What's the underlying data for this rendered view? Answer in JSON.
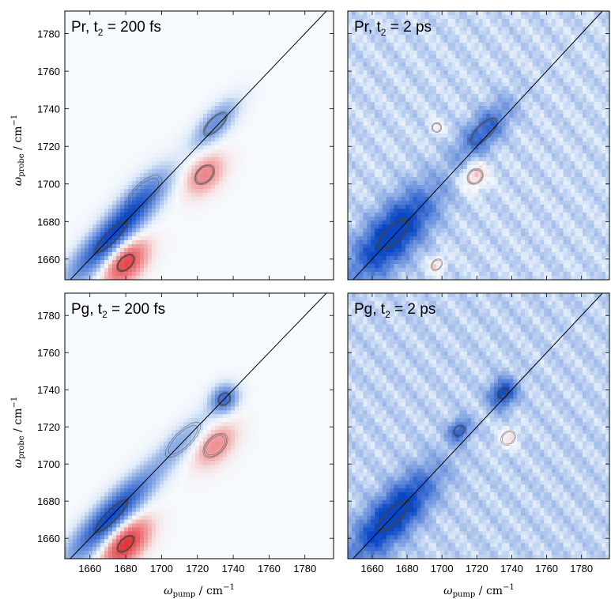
{
  "figure": {
    "xlabel": {
      "symbol": "ω",
      "sub": "pump",
      "unit": " / cm",
      "sup": "−1"
    },
    "ylabel": {
      "symbol": "ω",
      "sub": "probe",
      "unit": " / cm",
      "sup": "−1"
    }
  },
  "colors": {
    "negative_strong": "#0a47c4",
    "negative_weak": "#dbe8f8",
    "positive_strong": "#e3262b",
    "positive_weak": "#f6dede",
    "background": "#f6f9fd",
    "contour": "#444444",
    "diagonal": "#000000"
  },
  "chart_data": [
    {
      "type": "heatmap",
      "panel_label": {
        "main": "Pr, t",
        "sub": "2",
        "rest": " = 200 fs"
      },
      "xlim": [
        1646,
        1796
      ],
      "ylim": [
        1649,
        1792
      ],
      "xticks": [
        "1660",
        "1680",
        "1700",
        "1720",
        "1740",
        "1760",
        "1780"
      ],
      "yticks": [
        "1660",
        "1680",
        "1700",
        "1720",
        "1740",
        "1760",
        "1780"
      ],
      "diagonal": true,
      "features": [
        {
          "sign": "negative",
          "x": 1672,
          "y": 1672,
          "amp": 1.0,
          "along": 24,
          "across": 6
        },
        {
          "sign": "negative",
          "x": 1690,
          "y": 1695,
          "amp": 0.35,
          "along": 14,
          "across": 6
        },
        {
          "sign": "negative",
          "x": 1730,
          "y": 1732,
          "amp": 0.55,
          "along": 12,
          "across": 5
        },
        {
          "sign": "positive",
          "x": 1680,
          "y": 1658,
          "amp": 0.85,
          "along": 10,
          "across": 6
        },
        {
          "sign": "positive",
          "x": 1724,
          "y": 1705,
          "amp": 0.5,
          "along": 9,
          "across": 6
        }
      ]
    },
    {
      "type": "heatmap",
      "panel_label": {
        "main": "Pr, t",
        "sub": "2",
        "rest": " = 2 ps"
      },
      "xlim": [
        1646,
        1796
      ],
      "ylim": [
        1649,
        1792
      ],
      "xticks": [
        "1660",
        "1680",
        "1700",
        "1720",
        "1740",
        "1760",
        "1780"
      ],
      "yticks": [],
      "diagonal": true,
      "features": [
        {
          "sign": "negative",
          "x": 1672,
          "y": 1673,
          "amp": 1.0,
          "along": 22,
          "across": 9
        },
        {
          "sign": "negative",
          "x": 1724,
          "y": 1728,
          "amp": 0.6,
          "along": 14,
          "across": 6
        },
        {
          "sign": "positive",
          "x": 1719,
          "y": 1704,
          "amp": 0.45,
          "along": 6,
          "across": 5
        },
        {
          "sign": "positive",
          "x": 1697,
          "y": 1657,
          "amp": 0.35,
          "along": 4,
          "across": 3
        },
        {
          "sign": "positive",
          "x": 1697,
          "y": 1730,
          "amp": 0.25,
          "along": 3,
          "across": 3
        }
      ],
      "background_level": -0.2
    },
    {
      "type": "heatmap",
      "panel_label": {
        "main": "Pg, t",
        "sub": "2",
        "rest": " = 200 fs"
      },
      "xlim": [
        1646,
        1796
      ],
      "ylim": [
        1649,
        1792
      ],
      "xticks": [
        "1660",
        "1680",
        "1700",
        "1720",
        "1740",
        "1760",
        "1780"
      ],
      "yticks": [
        "1660",
        "1680",
        "1700",
        "1720",
        "1740",
        "1760",
        "1780"
      ],
      "diagonal": true,
      "features": [
        {
          "sign": "negative",
          "x": 1672,
          "y": 1672,
          "amp": 1.0,
          "along": 24,
          "across": 6
        },
        {
          "sign": "negative",
          "x": 1735,
          "y": 1735,
          "amp": 0.75,
          "along": 6,
          "across": 5
        },
        {
          "sign": "negative",
          "x": 1712,
          "y": 1713,
          "amp": 0.35,
          "along": 14,
          "across": 5
        },
        {
          "sign": "positive",
          "x": 1680,
          "y": 1657,
          "amp": 0.95,
          "along": 11,
          "across": 6
        },
        {
          "sign": "positive",
          "x": 1730,
          "y": 1710,
          "amp": 0.45,
          "along": 10,
          "across": 6
        }
      ]
    },
    {
      "type": "heatmap",
      "panel_label": {
        "main": "Pg, t",
        "sub": "2",
        "rest": " = 2 ps"
      },
      "xlim": [
        1646,
        1796
      ],
      "ylim": [
        1649,
        1792
      ],
      "xticks": [
        "1660",
        "1680",
        "1700",
        "1720",
        "1740",
        "1760",
        "1780"
      ],
      "yticks": [],
      "diagonal": true,
      "features": [
        {
          "sign": "negative",
          "x": 1672,
          "y": 1672,
          "amp": 1.0,
          "along": 22,
          "across": 8
        },
        {
          "sign": "negative",
          "x": 1735,
          "y": 1738,
          "amp": 0.8,
          "along": 6,
          "across": 5
        },
        {
          "sign": "negative",
          "x": 1710,
          "y": 1718,
          "amp": 0.6,
          "along": 5,
          "across": 4
        },
        {
          "sign": "positive",
          "x": 1738,
          "y": 1714,
          "amp": 0.3,
          "along": 5,
          "across": 4
        }
      ],
      "background_level": -0.22
    }
  ]
}
